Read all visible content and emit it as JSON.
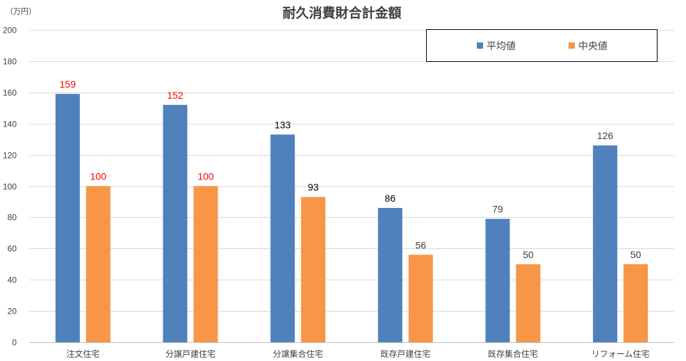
{
  "chart_data": {
    "type": "bar",
    "title": "耐久消費財合計金額",
    "unit_label": "（万円）",
    "categories": [
      "注文住宅",
      "分譲戸建住宅",
      "分譲集合住宅",
      "既存戸建住宅",
      "既存集合住宅",
      "リフォーム住宅"
    ],
    "series": [
      {
        "name": "平均値",
        "color": "#4F81BD",
        "values": [
          159,
          152,
          133,
          86,
          79,
          126
        ],
        "label_colors": [
          "#FF0000",
          "#FF0000",
          "#000000",
          "#000000",
          "#404040",
          "#404040"
        ]
      },
      {
        "name": "中央値",
        "color": "#F79646",
        "values": [
          100,
          100,
          93,
          56,
          50,
          50
        ],
        "label_colors": [
          "#FF0000",
          "#FF0000",
          "#000000",
          "#404040",
          "#404040",
          "#404040"
        ]
      }
    ],
    "ylim": [
      0,
      200
    ],
    "yticks": [
      "0",
      "20",
      "40",
      "60",
      "80",
      "100",
      "120",
      "140",
      "160",
      "180",
      "200"
    ],
    "grid": true,
    "legend_position": "top-right"
  }
}
